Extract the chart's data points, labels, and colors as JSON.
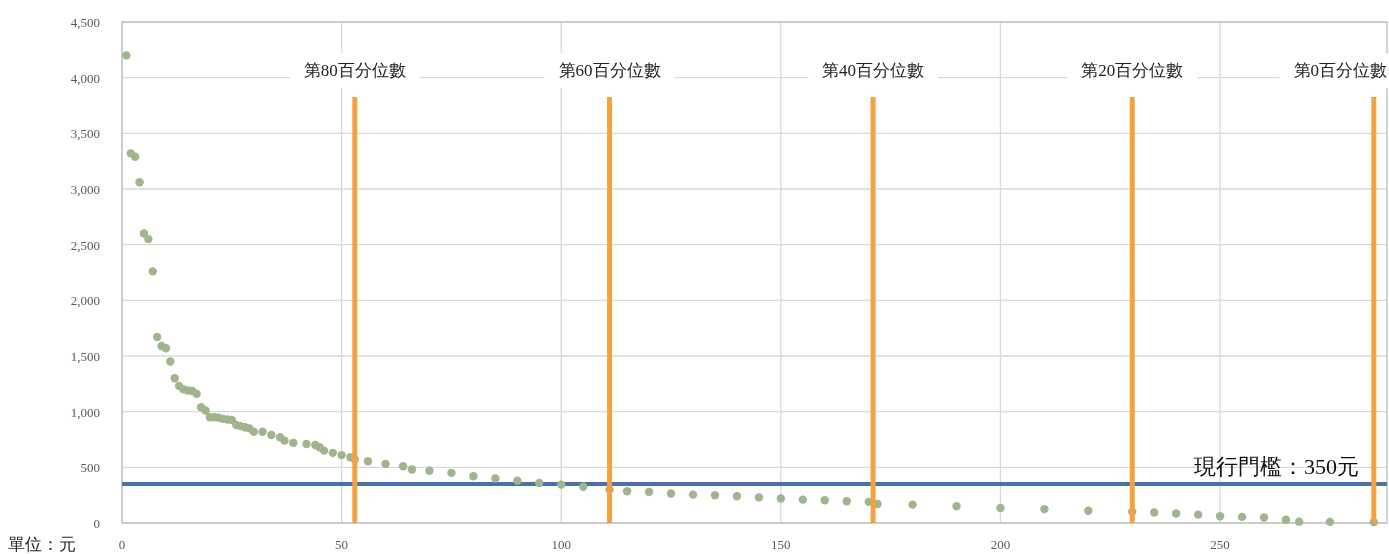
{
  "chart_data": {
    "type": "scatter",
    "x": [
      1,
      2,
      3,
      4,
      5,
      6,
      7,
      8,
      9,
      10,
      11,
      12,
      13,
      14,
      15,
      16,
      17,
      18,
      19,
      20,
      21,
      22,
      23,
      24,
      25,
      26,
      27,
      28,
      29,
      30,
      32,
      34,
      36,
      37,
      39,
      42,
      44,
      45,
      46,
      48,
      50,
      52,
      53,
      56,
      60,
      64,
      66,
      70,
      75,
      80,
      85,
      90,
      95,
      100,
      105,
      111,
      115,
      120,
      125,
      130,
      135,
      140,
      145,
      150,
      155,
      160,
      165,
      170,
      172,
      180,
      190,
      200,
      210,
      220,
      230,
      235,
      240,
      245,
      250,
      255,
      260,
      265,
      268,
      275,
      285
    ],
    "series": [
      {
        "color": "#a0b48e",
        "values": [
          4200,
          3320,
          3290,
          3060,
          2600,
          2550,
          2260,
          1670,
          1590,
          1570,
          1450,
          1300,
          1230,
          1200,
          1190,
          1185,
          1160,
          1040,
          1010,
          950,
          950,
          945,
          935,
          930,
          925,
          880,
          870,
          860,
          850,
          820,
          820,
          790,
          770,
          740,
          720,
          710,
          700,
          680,
          650,
          630,
          610,
          590,
          570,
          555,
          530,
          510,
          480,
          470,
          450,
          420,
          400,
          380,
          360,
          345,
          325,
          300,
          285,
          280,
          265,
          255,
          250,
          240,
          230,
          220,
          210,
          205,
          195,
          190,
          170,
          165,
          150,
          135,
          125,
          110,
          100,
          95,
          85,
          75,
          60,
          55,
          50,
          30,
          12,
          10,
          8
        ]
      }
    ],
    "xlim": [
      0,
      288
    ],
    "xticks": [
      0,
      50,
      100,
      150,
      200,
      250
    ],
    "ylim": [
      0,
      4500
    ],
    "yticks": [
      0,
      {
        "value": 500,
        "label": "500"
      },
      {
        "value": 1000,
        "label": "1,000"
      },
      {
        "value": 1500,
        "label": "1,500"
      },
      {
        "value": 2000,
        "label": "2,000"
      },
      {
        "value": 2500,
        "label": "2,500"
      },
      {
        "value": 3000,
        "label": "3,000"
      },
      {
        "value": 3500,
        "label": "3,500"
      },
      {
        "value": 4000,
        "label": "4,000"
      },
      {
        "value": 4500,
        "label": "4,500"
      }
    ],
    "grid": true,
    "marker": "circle",
    "ref_lines": [
      {
        "axis": "x",
        "value": 53,
        "label": "第80百分位數",
        "color": "#f4a13f"
      },
      {
        "axis": "x",
        "value": 111,
        "label": "第60百分位數",
        "color": "#f4a13f"
      },
      {
        "axis": "x",
        "value": 171,
        "label": "第40百分位數",
        "color": "#f4a13f"
      },
      {
        "axis": "x",
        "value": 230,
        "label": "第20百分位數",
        "color": "#f4a13f"
      },
      {
        "axis": "x",
        "value": 285,
        "label": "第0百分位數",
        "color": "#f4a13f"
      },
      {
        "axis": "y",
        "value": 350,
        "label": "現行門檻：350元",
        "color": "#4a72a8"
      }
    ],
    "annotations": [
      "單位：元"
    ]
  }
}
